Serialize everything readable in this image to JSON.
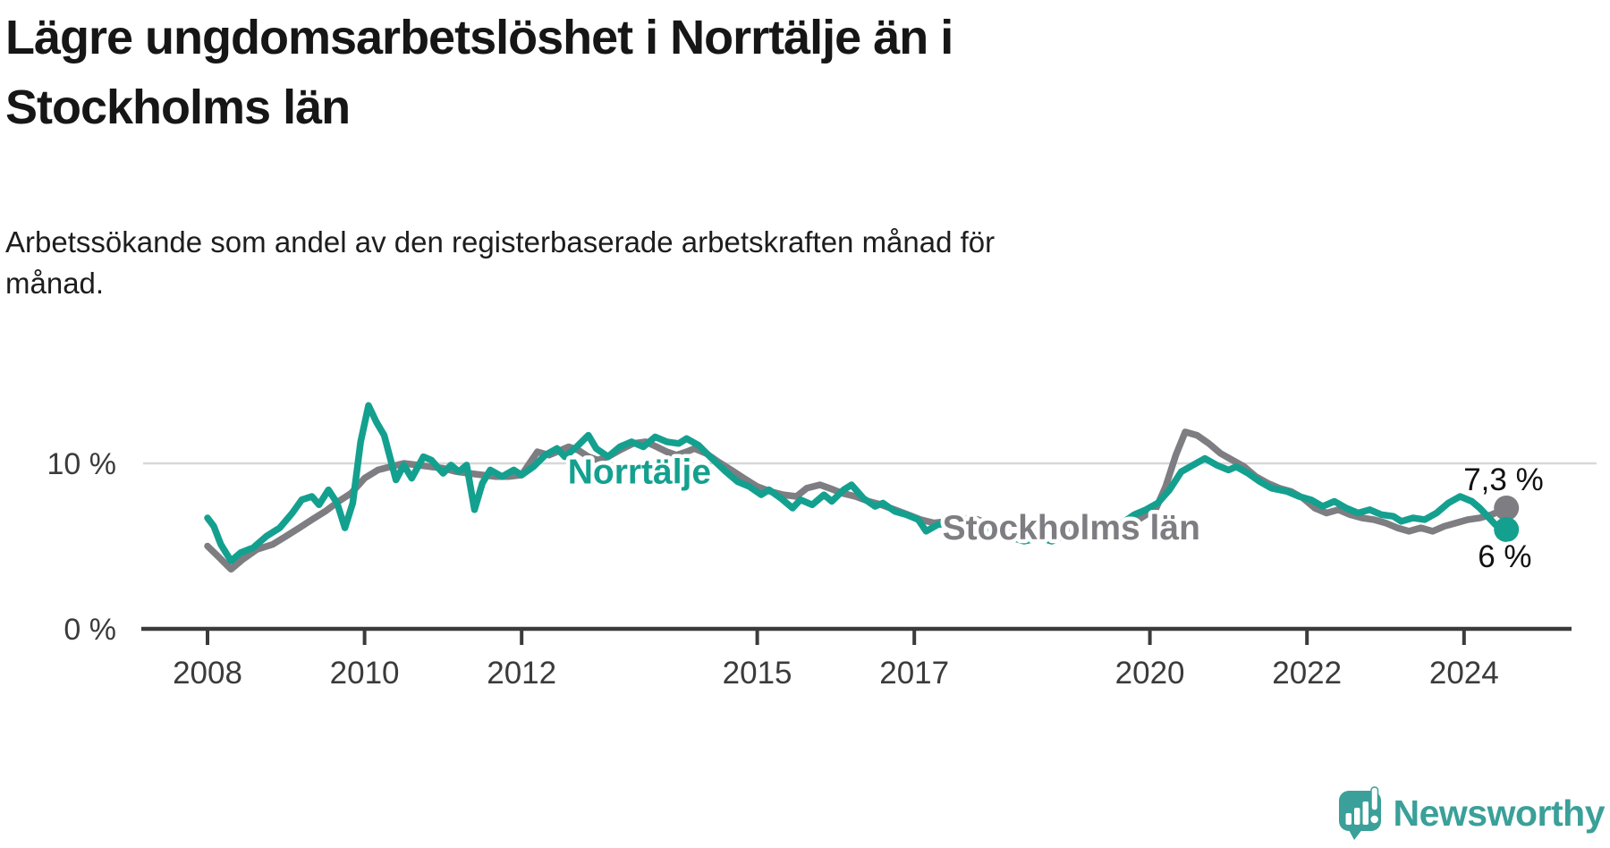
{
  "header": {
    "title": "Lägre ungdomsarbetslöshet i Norrtälje än i Stockholms län",
    "title_lines": [
      "Lägre ungdomsarbetslöshet i Norrtälje än i",
      "Stockholms län"
    ],
    "subtitle": "Arbetssökande som andel av den registerbaserade arbetskraften månad för månad.",
    "subtitle_lines": [
      "Arbetssökande som andel av den registerbaserade arbetskraften månad för",
      "månad."
    ]
  },
  "footer": {
    "logo_text": "Newsworthy",
    "logo_icon": "newsworthy-speech-bubble-chart-icon",
    "logo_color": "#3aa099"
  },
  "colors": {
    "norrtalje": "#14a08f",
    "stockholm": "#7e7d82",
    "axis": "#3b3b3b",
    "gridline": "#d8d8d8",
    "text": "#161616"
  },
  "chart_data": {
    "type": "line",
    "title": "Lägre ungdomsarbetslöshet i Norrtälje än i Stockholms län",
    "subtitle": "Arbetssökande som andel av den registerbaserade arbetskraften månad för månad.",
    "xlabel": "",
    "ylabel": "",
    "unit": "%",
    "x_range": [
      2007.2,
      2025.3
    ],
    "ylim": [
      0,
      17
    ],
    "grid": "single horizontal gridline at 10 %",
    "legend_position": "inline labels on lines",
    "x_ticks": [
      {
        "value": 2008,
        "label": "2008"
      },
      {
        "value": 2010,
        "label": "2010"
      },
      {
        "value": 2012,
        "label": "2012"
      },
      {
        "value": 2015,
        "label": "2015"
      },
      {
        "value": 2017,
        "label": "2017"
      },
      {
        "value": 2020,
        "label": "2020"
      },
      {
        "value": 2022,
        "label": "2022"
      },
      {
        "value": 2024,
        "label": "2024"
      }
    ],
    "y_ticks": [
      {
        "value": 10,
        "label": "10 %",
        "gridline": true
      },
      {
        "value": 0,
        "label": "0 %",
        "gridline": false
      }
    ],
    "series": [
      {
        "name": "Stockholms län",
        "color": "#7e7d82",
        "end_value": 7.3,
        "end_label": "7,3 %",
        "label_pos": {
          "t": 2019.0,
          "v": 6.1
        },
        "points": [
          [
            2008.0,
            5.0
          ],
          [
            2008.13,
            4.4
          ],
          [
            2008.3,
            3.6
          ],
          [
            2008.45,
            4.2
          ],
          [
            2008.63,
            4.8
          ],
          [
            2008.83,
            5.1
          ],
          [
            2009.0,
            5.6
          ],
          [
            2009.17,
            6.1
          ],
          [
            2009.33,
            6.6
          ],
          [
            2009.5,
            7.1
          ],
          [
            2009.67,
            7.7
          ],
          [
            2009.83,
            8.2
          ],
          [
            2010.0,
            9.1
          ],
          [
            2010.17,
            9.6
          ],
          [
            2010.33,
            9.8
          ],
          [
            2010.5,
            10.0
          ],
          [
            2010.67,
            9.9
          ],
          [
            2010.83,
            9.8
          ],
          [
            2011.0,
            9.7
          ],
          [
            2011.17,
            9.5
          ],
          [
            2011.33,
            9.4
          ],
          [
            2011.5,
            9.3
          ],
          [
            2011.67,
            9.2
          ],
          [
            2011.83,
            9.2
          ],
          [
            2012.0,
            9.3
          ],
          [
            2012.1,
            10.0
          ],
          [
            2012.2,
            10.7
          ],
          [
            2012.35,
            10.5
          ],
          [
            2012.5,
            10.8
          ],
          [
            2012.6,
            11.0
          ],
          [
            2012.72,
            10.8
          ],
          [
            2012.85,
            10.4
          ],
          [
            2012.97,
            10.2
          ],
          [
            2013.1,
            10.4
          ],
          [
            2013.25,
            10.8
          ],
          [
            2013.42,
            11.2
          ],
          [
            2013.58,
            11.3
          ],
          [
            2013.72,
            11.0
          ],
          [
            2013.85,
            10.7
          ],
          [
            2013.97,
            10.5
          ],
          [
            2014.1,
            10.7
          ],
          [
            2014.2,
            10.9
          ],
          [
            2014.35,
            10.6
          ],
          [
            2014.5,
            10.1
          ],
          [
            2014.67,
            9.6
          ],
          [
            2014.83,
            9.1
          ],
          [
            2015.0,
            8.6
          ],
          [
            2015.17,
            8.3
          ],
          [
            2015.33,
            8.1
          ],
          [
            2015.5,
            8.0
          ],
          [
            2015.63,
            8.5
          ],
          [
            2015.8,
            8.7
          ],
          [
            2015.92,
            8.5
          ],
          [
            2016.08,
            8.2
          ],
          [
            2016.25,
            8.0
          ],
          [
            2016.42,
            7.7
          ],
          [
            2016.58,
            7.5
          ],
          [
            2016.75,
            7.2
          ],
          [
            2016.92,
            6.9
          ],
          [
            2017.08,
            6.6
          ],
          [
            2017.25,
            6.4
          ],
          [
            2017.42,
            6.5
          ],
          [
            2017.58,
            6.6
          ],
          [
            2017.75,
            6.7
          ],
          [
            2017.92,
            6.4
          ],
          [
            2018.08,
            6.2
          ],
          [
            2018.25,
            6.0
          ],
          [
            2018.42,
            5.9
          ],
          [
            2018.58,
            6.1
          ],
          [
            2018.75,
            5.9
          ],
          [
            2018.92,
            5.8
          ],
          [
            2019.08,
            6.0
          ],
          [
            2019.25,
            5.9
          ],
          [
            2019.42,
            5.8
          ],
          [
            2019.58,
            5.9
          ],
          [
            2019.75,
            6.3
          ],
          [
            2019.92,
            6.8
          ],
          [
            2020.08,
            7.3
          ],
          [
            2020.2,
            8.6
          ],
          [
            2020.33,
            10.5
          ],
          [
            2020.45,
            11.9
          ],
          [
            2020.6,
            11.7
          ],
          [
            2020.75,
            11.2
          ],
          [
            2020.9,
            10.6
          ],
          [
            2021.05,
            10.2
          ],
          [
            2021.2,
            9.8
          ],
          [
            2021.35,
            9.2
          ],
          [
            2021.5,
            8.8
          ],
          [
            2021.65,
            8.5
          ],
          [
            2021.8,
            8.3
          ],
          [
            2021.95,
            7.9
          ],
          [
            2022.1,
            7.3
          ],
          [
            2022.25,
            7.0
          ],
          [
            2022.4,
            7.2
          ],
          [
            2022.55,
            6.9
          ],
          [
            2022.7,
            6.7
          ],
          [
            2022.85,
            6.6
          ],
          [
            2023.0,
            6.4
          ],
          [
            2023.15,
            6.1
          ],
          [
            2023.3,
            5.9
          ],
          [
            2023.45,
            6.1
          ],
          [
            2023.6,
            5.9
          ],
          [
            2023.75,
            6.2
          ],
          [
            2023.9,
            6.4
          ],
          [
            2024.05,
            6.6
          ],
          [
            2024.2,
            6.7
          ],
          [
            2024.35,
            6.9
          ],
          [
            2024.54,
            7.3
          ]
        ]
      },
      {
        "name": "Norrtälje",
        "color": "#14a08f",
        "end_value": 6.0,
        "end_label": "6 %",
        "label_pos": {
          "t": 2013.5,
          "v": 9.5
        },
        "points": [
          [
            2008.0,
            6.7
          ],
          [
            2008.08,
            6.2
          ],
          [
            2008.17,
            5.1
          ],
          [
            2008.3,
            4.1
          ],
          [
            2008.42,
            4.6
          ],
          [
            2008.58,
            4.9
          ],
          [
            2008.75,
            5.6
          ],
          [
            2008.92,
            6.1
          ],
          [
            2009.08,
            7.0
          ],
          [
            2009.2,
            7.8
          ],
          [
            2009.33,
            8.0
          ],
          [
            2009.42,
            7.5
          ],
          [
            2009.54,
            8.4
          ],
          [
            2009.65,
            7.6
          ],
          [
            2009.75,
            6.1
          ],
          [
            2009.85,
            7.6
          ],
          [
            2009.95,
            11.3
          ],
          [
            2010.05,
            13.5
          ],
          [
            2010.15,
            12.5
          ],
          [
            2010.25,
            11.7
          ],
          [
            2010.4,
            9.0
          ],
          [
            2010.5,
            9.9
          ],
          [
            2010.6,
            9.1
          ],
          [
            2010.75,
            10.4
          ],
          [
            2010.85,
            10.2
          ],
          [
            2011.0,
            9.4
          ],
          [
            2011.1,
            9.9
          ],
          [
            2011.2,
            9.5
          ],
          [
            2011.3,
            9.9
          ],
          [
            2011.4,
            7.2
          ],
          [
            2011.5,
            8.8
          ],
          [
            2011.6,
            9.6
          ],
          [
            2011.75,
            9.2
          ],
          [
            2011.9,
            9.6
          ],
          [
            2012.0,
            9.3
          ],
          [
            2012.15,
            9.8
          ],
          [
            2012.3,
            10.5
          ],
          [
            2012.45,
            10.9
          ],
          [
            2012.55,
            10.4
          ],
          [
            2012.7,
            11.0
          ],
          [
            2012.85,
            11.7
          ],
          [
            2012.95,
            10.9
          ],
          [
            2013.1,
            10.4
          ],
          [
            2013.25,
            11.0
          ],
          [
            2013.4,
            11.3
          ],
          [
            2013.55,
            11.0
          ],
          [
            2013.7,
            11.6
          ],
          [
            2013.85,
            11.3
          ],
          [
            2014.0,
            11.2
          ],
          [
            2014.1,
            11.5
          ],
          [
            2014.25,
            11.1
          ],
          [
            2014.4,
            10.4
          ],
          [
            2014.6,
            9.5
          ],
          [
            2014.75,
            8.9
          ],
          [
            2014.9,
            8.6
          ],
          [
            2015.05,
            8.1
          ],
          [
            2015.15,
            8.4
          ],
          [
            2015.3,
            7.9
          ],
          [
            2015.45,
            7.3
          ],
          [
            2015.55,
            7.8
          ],
          [
            2015.7,
            7.5
          ],
          [
            2015.85,
            8.1
          ],
          [
            2015.95,
            7.7
          ],
          [
            2016.1,
            8.4
          ],
          [
            2016.2,
            8.7
          ],
          [
            2016.35,
            7.9
          ],
          [
            2016.5,
            7.4
          ],
          [
            2016.6,
            7.6
          ],
          [
            2016.75,
            7.1
          ],
          [
            2016.9,
            6.9
          ],
          [
            2017.05,
            6.6
          ],
          [
            2017.15,
            5.9
          ],
          [
            2017.3,
            6.3
          ],
          [
            2017.45,
            6.4
          ],
          [
            2017.6,
            6.2
          ],
          [
            2017.75,
            6.3
          ],
          [
            2017.9,
            6.0
          ],
          [
            2018.1,
            5.8
          ],
          [
            2018.25,
            5.5
          ],
          [
            2018.4,
            5.3
          ],
          [
            2018.6,
            5.5
          ],
          [
            2018.75,
            5.3
          ],
          [
            2018.9,
            5.6
          ],
          [
            2019.05,
            5.9
          ],
          [
            2019.2,
            5.6
          ],
          [
            2019.35,
            5.9
          ],
          [
            2019.5,
            5.7
          ],
          [
            2019.65,
            6.4
          ],
          [
            2019.8,
            6.9
          ],
          [
            2019.95,
            7.2
          ],
          [
            2020.1,
            7.6
          ],
          [
            2020.25,
            8.4
          ],
          [
            2020.4,
            9.5
          ],
          [
            2020.55,
            9.9
          ],
          [
            2020.7,
            10.3
          ],
          [
            2020.85,
            9.9
          ],
          [
            2021.0,
            9.6
          ],
          [
            2021.1,
            9.8
          ],
          [
            2021.25,
            9.4
          ],
          [
            2021.4,
            8.9
          ],
          [
            2021.55,
            8.5
          ],
          [
            2021.75,
            8.3
          ],
          [
            2021.9,
            8.0
          ],
          [
            2022.05,
            7.8
          ],
          [
            2022.2,
            7.4
          ],
          [
            2022.35,
            7.7
          ],
          [
            2022.5,
            7.3
          ],
          [
            2022.65,
            7.0
          ],
          [
            2022.8,
            7.2
          ],
          [
            2022.95,
            6.9
          ],
          [
            2023.1,
            6.8
          ],
          [
            2023.2,
            6.5
          ],
          [
            2023.35,
            6.7
          ],
          [
            2023.5,
            6.6
          ],
          [
            2023.65,
            7.0
          ],
          [
            2023.8,
            7.6
          ],
          [
            2023.95,
            8.0
          ],
          [
            2024.1,
            7.7
          ],
          [
            2024.2,
            7.3
          ],
          [
            2024.3,
            6.8
          ],
          [
            2024.4,
            6.3
          ],
          [
            2024.54,
            6.0
          ]
        ]
      }
    ]
  }
}
